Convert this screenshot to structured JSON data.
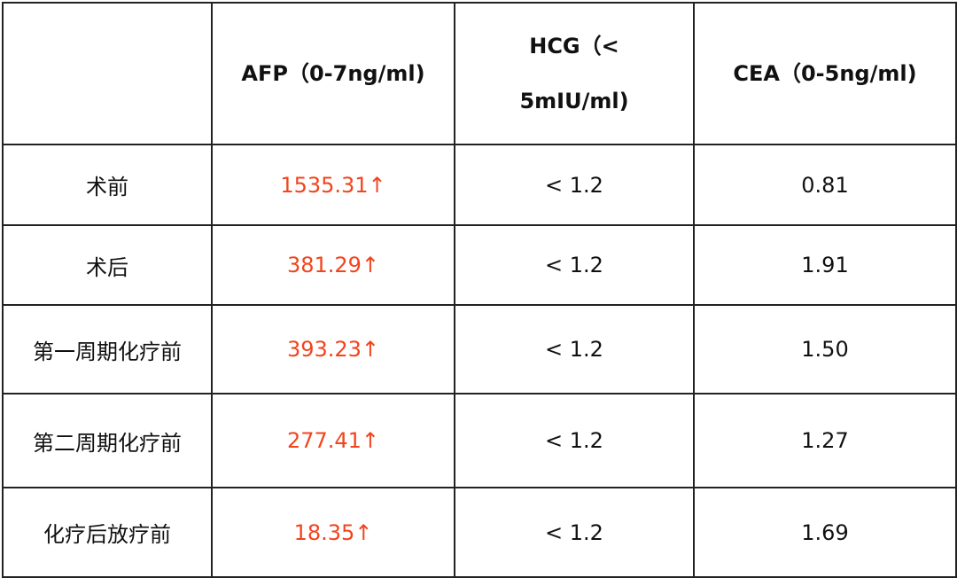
{
  "table": {
    "header": [
      "",
      "AFP（0-7ng/ml)",
      "HCG（< 5mIU/ml)",
      "CEA（0-5ng/ml)"
    ],
    "rows": [
      [
        "术前",
        "1535.31↑",
        "< 1.2",
        "0.81"
      ],
      [
        "术后",
        "381.29↑",
        "< 1.2",
        "1.91"
      ],
      [
        "第一周期化疗前",
        "393.23↑",
        "< 1.2",
        "1.50"
      ],
      [
        "第二周期化疗前",
        "277.41↑",
        "< 1.2",
        "1.27"
      ],
      [
        "化疗后放疗前",
        "18.35↑",
        "< 1.2",
        "1.69"
      ]
    ]
  }
}
